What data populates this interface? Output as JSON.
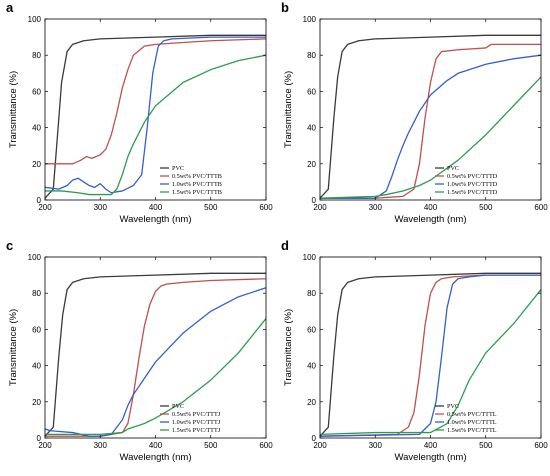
{
  "chart_data": [
    {
      "type": "line",
      "panel": "a",
      "xlabel": "Wavelength (nm)",
      "ylabel": "Transmittance (%)",
      "xlim": [
        200,
        600
      ],
      "ylim": [
        0,
        100
      ],
      "xticks": [
        "200",
        "300",
        "400",
        "500",
        "600"
      ],
      "yticks": [
        "0",
        "20",
        "40",
        "60",
        "80",
        "100"
      ],
      "legend_position": "bottom-right",
      "grid": false,
      "series": [
        {
          "name": "PVC",
          "color": "#3a3a3a",
          "x": [
            200,
            215,
            225,
            230,
            240,
            250,
            270,
            300,
            400,
            500,
            600
          ],
          "y": [
            1,
            6,
            45,
            65,
            82,
            86,
            88,
            89,
            90,
            91,
            91
          ]
        },
        {
          "name": "0.5wt% PVC/TTTB",
          "color": "#c0504d",
          "x": [
            200,
            250,
            265,
            275,
            285,
            300,
            310,
            320,
            330,
            340,
            350,
            360,
            380,
            400,
            450,
            500,
            600
          ],
          "y": [
            20,
            20,
            22,
            24,
            23,
            25,
            28,
            36,
            48,
            62,
            72,
            80,
            85,
            86,
            87,
            88,
            89
          ]
        },
        {
          "name": "1.0wt% PVC/TTTB",
          "color": "#3460c8",
          "x": [
            200,
            225,
            240,
            250,
            260,
            270,
            280,
            290,
            300,
            310,
            320,
            340,
            360,
            375,
            385,
            395,
            405,
            415,
            430,
            500,
            600
          ],
          "y": [
            7,
            6,
            8,
            11,
            12,
            10,
            8,
            7,
            9,
            6,
            4,
            5,
            8,
            14,
            40,
            70,
            85,
            88,
            89,
            90,
            90
          ]
        },
        {
          "name": "1.5wt% PVC/TTTB",
          "color": "#2e9c4e",
          "x": [
            200,
            230,
            260,
            280,
            300,
            320,
            330,
            340,
            350,
            360,
            380,
            400,
            450,
            500,
            550,
            600
          ],
          "y": [
            5,
            5,
            4,
            3,
            3,
            3,
            6,
            14,
            24,
            31,
            43,
            52,
            65,
            72,
            77,
            80
          ]
        }
      ]
    },
    {
      "type": "line",
      "panel": "b",
      "xlabel": "Wavelength (nm)",
      "ylabel": "Transmittance (%)",
      "xlim": [
        200,
        600
      ],
      "ylim": [
        0,
        100
      ],
      "xticks": [
        "200",
        "300",
        "400",
        "500",
        "600"
      ],
      "yticks": [
        "0",
        "20",
        "40",
        "60",
        "80",
        "100"
      ],
      "legend_position": "bottom-right",
      "grid": false,
      "series": [
        {
          "name": "PVC",
          "color": "#3a3a3a",
          "x": [
            200,
            215,
            225,
            232,
            240,
            250,
            270,
            300,
            400,
            500,
            600
          ],
          "y": [
            1,
            6,
            45,
            68,
            82,
            86,
            88,
            89,
            90,
            91,
            91
          ]
        },
        {
          "name": "0.5wt% PVC/TTTD",
          "color": "#c0504d",
          "x": [
            200,
            300,
            350,
            370,
            380,
            390,
            400,
            410,
            420,
            450,
            500,
            510,
            550,
            600
          ],
          "y": [
            1,
            1,
            2,
            6,
            20,
            45,
            65,
            78,
            82,
            83,
            84,
            86,
            86,
            86
          ]
        },
        {
          "name": "1.0wt% PVC/TTTD",
          "color": "#3460c8",
          "x": [
            200,
            300,
            320,
            330,
            340,
            350,
            360,
            370,
            380,
            400,
            430,
            450,
            500,
            550,
            600
          ],
          "y": [
            1,
            1,
            5,
            13,
            22,
            30,
            37,
            43,
            49,
            58,
            66,
            70,
            75,
            78,
            80
          ]
        },
        {
          "name": "1.5wt% PVC/TTTD",
          "color": "#2e9c4e",
          "x": [
            200,
            300,
            320,
            350,
            380,
            400,
            450,
            500,
            550,
            600
          ],
          "y": [
            1,
            2,
            3,
            5,
            8,
            11,
            22,
            36,
            52,
            68
          ]
        }
      ]
    },
    {
      "type": "line",
      "panel": "c",
      "xlabel": "Wavelength (nm)",
      "ylabel": "Transmittance (%)",
      "xlim": [
        200,
        600
      ],
      "ylim": [
        0,
        100
      ],
      "xticks": [
        "200",
        "300",
        "400",
        "500",
        "600"
      ],
      "yticks": [
        "0",
        "20",
        "40",
        "60",
        "80",
        "100"
      ],
      "legend_position": "bottom-right",
      "grid": false,
      "series": [
        {
          "name": "PVC",
          "color": "#3a3a3a",
          "x": [
            200,
            215,
            225,
            232,
            240,
            250,
            270,
            300,
            400,
            500,
            600
          ],
          "y": [
            1,
            6,
            45,
            68,
            82,
            86,
            88,
            89,
            90,
            91,
            91
          ]
        },
        {
          "name": "0.5wt% PVC/TTTJ",
          "color": "#c0504d",
          "x": [
            200,
            300,
            340,
            350,
            360,
            370,
            380,
            390,
            400,
            410,
            420,
            450,
            500,
            600
          ],
          "y": [
            1,
            1,
            3,
            8,
            24,
            44,
            62,
            74,
            81,
            84,
            85,
            86,
            87,
            88
          ]
        },
        {
          "name": "1.0wt% PVC/TTTJ",
          "color": "#3460c8",
          "x": [
            200,
            210,
            250,
            280,
            300,
            320,
            340,
            350,
            360,
            380,
            400,
            450,
            500,
            550,
            600
          ],
          "y": [
            5,
            4,
            3,
            1,
            1,
            2,
            10,
            18,
            24,
            33,
            42,
            58,
            70,
            78,
            83
          ]
        },
        {
          "name": "1.5wt% PVC/TTTJ",
          "color": "#2e9c4e",
          "x": [
            200,
            250,
            300,
            340,
            350,
            380,
            400,
            450,
            500,
            550,
            600
          ],
          "y": [
            2,
            2,
            2,
            3,
            5,
            8,
            11,
            20,
            32,
            47,
            66
          ]
        }
      ]
    },
    {
      "type": "line",
      "panel": "d",
      "xlabel": "Wavelength (nm)",
      "ylabel": "Transmittance (%)",
      "xlim": [
        200,
        600
      ],
      "ylim": [
        0,
        100
      ],
      "xticks": [
        "200",
        "300",
        "400",
        "500",
        "600"
      ],
      "yticks": [
        "0",
        "20",
        "40",
        "60",
        "80",
        "100"
      ],
      "legend_position": "bottom-right",
      "grid": false,
      "series": [
        {
          "name": "PVC",
          "color": "#3a3a3a",
          "x": [
            200,
            215,
            225,
            232,
            240,
            250,
            270,
            300,
            400,
            500,
            600
          ],
          "y": [
            1,
            6,
            45,
            68,
            82,
            86,
            88,
            89,
            90,
            91,
            91
          ]
        },
        {
          "name": "0.5wt% PVC/TTTL",
          "color": "#c0504d",
          "x": [
            200,
            340,
            360,
            370,
            380,
            390,
            400,
            410,
            420,
            440,
            500,
            600
          ],
          "y": [
            1,
            2,
            6,
            14,
            35,
            62,
            80,
            86,
            88,
            89,
            90,
            90
          ]
        },
        {
          "name": "1.0wt% PVC/TTTL",
          "color": "#3460c8",
          "x": [
            200,
            380,
            400,
            410,
            420,
            430,
            440,
            450,
            470,
            500,
            600
          ],
          "y": [
            1,
            2,
            8,
            20,
            45,
            72,
            85,
            88,
            89,
            90,
            90
          ]
        },
        {
          "name": "1.5wt% PVC/TTTL",
          "color": "#2e9c4e",
          "x": [
            200,
            300,
            400,
            430,
            450,
            470,
            500,
            550,
            600
          ],
          "y": [
            2,
            3,
            3,
            8,
            18,
            32,
            47,
            63,
            82
          ]
        }
      ]
    }
  ]
}
